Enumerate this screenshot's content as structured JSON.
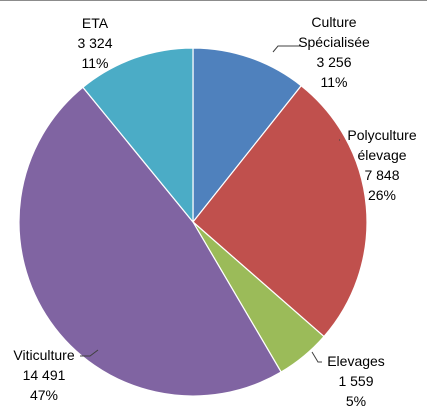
{
  "chart_data": {
    "type": "pie",
    "title": "",
    "slices": [
      {
        "name": "Culture Spécialisée",
        "name_lines": [
          "Culture",
          "Spécialisée"
        ],
        "value": 3256,
        "value_label": "3 256",
        "percent": 11,
        "percent_label": "11%",
        "color": "#4f81bd"
      },
      {
        "name": "Polyculture élevage",
        "name_lines": [
          "Polyculture",
          "élevage"
        ],
        "value": 7848,
        "value_label": "7 848",
        "percent": 26,
        "percent_label": "26%",
        "color": "#c0504d"
      },
      {
        "name": "Elevages",
        "name_lines": [
          "Elevages"
        ],
        "value": 1559,
        "value_label": "1 559",
        "percent": 5,
        "percent_label": "5%",
        "color": "#9bbb59"
      },
      {
        "name": "Viticulture",
        "name_lines": [
          "Viticulture"
        ],
        "value": 14491,
        "value_label": "14 491",
        "percent": 47,
        "percent_label": "47%",
        "color": "#8064a2"
      },
      {
        "name": "ETA",
        "name_lines": [
          "ETA"
        ],
        "value": 3324,
        "value_label": "3 324",
        "percent": 11,
        "percent_label": "11%",
        "color": "#4bacc6"
      }
    ],
    "start_angle": "12 o'clock",
    "direction": "clockwise",
    "legend": "none",
    "labels": "outside with leader lines"
  }
}
